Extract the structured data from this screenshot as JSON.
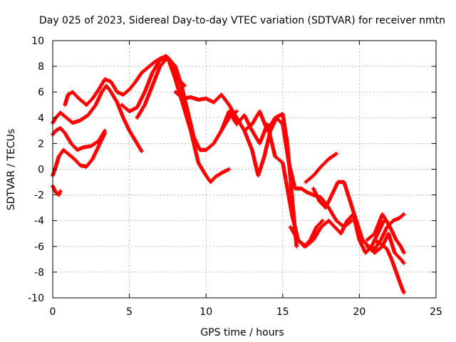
{
  "chart_data": {
    "type": "scatter",
    "title": "Day 025 of 2023, Sidereal Day-to-day VTEC variation (SDTVAR) for receiver nmtn",
    "xlabel": "GPS time / hours",
    "ylabel": "SDTVAR / TECUs",
    "xlim": [
      0,
      25
    ],
    "ylim": [
      -10,
      10
    ],
    "xticks": [
      "0",
      "5",
      "10",
      "15",
      "20",
      "25"
    ],
    "yticks": [
      "-10",
      "-8",
      "-6",
      "-4",
      "-2",
      "0",
      "2",
      "4",
      "6",
      "8",
      "10"
    ],
    "grid": true,
    "marker": "plus",
    "color": "#ff0000",
    "series": [
      {
        "name": "track-1",
        "x": [
          0.0,
          0.2,
          0.5,
          0.9,
          1.3,
          1.8,
          2.3,
          2.8,
          3.2,
          3.5,
          3.8,
          4.2,
          4.6,
          5.0,
          5.4,
          5.8
        ],
        "y": [
          3.6,
          4.0,
          4.4,
          4.0,
          3.6,
          3.8,
          4.2,
          5.0,
          6.0,
          6.5,
          6.0,
          5.2,
          4.0,
          3.0,
          2.2,
          1.4
        ]
      },
      {
        "name": "track-2",
        "x": [
          0.0,
          0.2,
          0.5,
          0.8,
          1.2,
          1.6,
          2.0,
          2.5,
          3.0,
          3.4
        ],
        "y": [
          2.7,
          3.0,
          3.2,
          2.8,
          2.0,
          1.5,
          1.7,
          1.8,
          2.2,
          3.0
        ]
      },
      {
        "name": "track-3",
        "x": [
          0.0,
          0.2,
          0.4,
          0.7,
          1.0,
          1.4,
          1.8,
          2.2,
          2.6,
          3.0,
          3.4
        ],
        "y": [
          -0.5,
          0.2,
          1.0,
          1.5,
          1.2,
          0.8,
          0.3,
          0.2,
          0.8,
          1.8,
          2.8
        ]
      },
      {
        "name": "track-4",
        "x": [
          0.0,
          0.2,
          0.4,
          0.5
        ],
        "y": [
          -1.3,
          -1.8,
          -2.0,
          -1.7
        ]
      },
      {
        "name": "track-5",
        "x": [
          0.8,
          1.0,
          1.3,
          1.7,
          2.2,
          2.6,
          3.0,
          3.4,
          3.8,
          4.2,
          4.6,
          5.0,
          5.4,
          5.8,
          6.2,
          6.6,
          7.0,
          7.4,
          7.8,
          8.2,
          8.6
        ],
        "y": [
          5.0,
          5.8,
          6.0,
          5.5,
          5.0,
          5.5,
          6.2,
          7.0,
          6.8,
          6.0,
          5.8,
          6.2,
          6.8,
          7.5,
          7.9,
          8.3,
          8.6,
          8.8,
          8.2,
          7.0,
          6.5
        ]
      },
      {
        "name": "track-6",
        "x": [
          5.5,
          6.0,
          6.5,
          7.0,
          7.5,
          8.0,
          8.4,
          8.8,
          9.2,
          9.6,
          10.0,
          10.5,
          11.0,
          11.5,
          12.0
        ],
        "y": [
          4.0,
          5.0,
          6.5,
          8.0,
          8.7,
          8.0,
          6.5,
          4.5,
          2.5,
          1.5,
          1.5,
          2.0,
          3.0,
          4.0,
          4.5
        ]
      },
      {
        "name": "track-7",
        "x": [
          4.5,
          5.0,
          5.5,
          6.0,
          6.5,
          7.0,
          7.5,
          8.0,
          8.5,
          9.0,
          9.5,
          10.0,
          10.3,
          10.6,
          11.0,
          11.5
        ],
        "y": [
          5.0,
          4.5,
          4.8,
          6.0,
          7.5,
          8.5,
          8.7,
          7.0,
          5.0,
          3.0,
          0.5,
          -0.5,
          -1.0,
          -0.6,
          -0.3,
          0.0
        ]
      },
      {
        "name": "track-8",
        "x": [
          8.0,
          8.5,
          9.0,
          9.5,
          10.0,
          10.5,
          11.0,
          11.5,
          12.0,
          12.5,
          13.0,
          13.5,
          14.0,
          14.5,
          15.0,
          15.3,
          15.6,
          15.9
        ],
        "y": [
          6.0,
          5.5,
          5.6,
          5.4,
          5.5,
          5.2,
          5.8,
          5.0,
          4.0,
          3.0,
          3.5,
          4.5,
          3.0,
          4.0,
          4.3,
          2.0,
          -2.0,
          -6.0
        ]
      },
      {
        "name": "track-9",
        "x": [
          11.0,
          11.5,
          12.0,
          12.5,
          13.0,
          13.5,
          14.0,
          14.5,
          15.0,
          15.3,
          15.6,
          16.0,
          16.4,
          16.8,
          17.2,
          17.6
        ],
        "y": [
          3.0,
          4.5,
          3.5,
          4.2,
          3.0,
          2.0,
          3.5,
          1.0,
          0.5,
          -1.5,
          -3.5,
          -5.5,
          -6.0,
          -5.5,
          -4.5,
          -4.0
        ]
      },
      {
        "name": "track-10",
        "x": [
          12.5,
          13.0,
          13.4,
          13.8,
          14.2,
          14.6,
          15.0,
          15.4,
          15.8,
          16.2,
          16.6,
          17.0,
          17.5,
          18.0,
          18.5,
          19.0,
          19.5
        ],
        "y": [
          3.0,
          1.5,
          -0.5,
          1.0,
          3.0,
          4.0,
          3.5,
          0.5,
          -1.5,
          -1.5,
          -1.8,
          -2.0,
          -2.2,
          -3.0,
          -4.0,
          -4.5,
          -4.0
        ]
      },
      {
        "name": "track-11",
        "x": [
          15.5,
          16.0,
          16.5,
          17.0,
          17.5,
          18.0,
          18.4,
          18.8,
          19.2,
          19.6,
          20.0,
          20.4,
          20.8,
          21.2,
          21.6
        ],
        "y": [
          -4.5,
          -5.5,
          -6.0,
          -5.5,
          -4.5,
          -4.0,
          -4.5,
          -5.0,
          -4.0,
          -3.5,
          -5.5,
          -6.5,
          -6.0,
          -5.0,
          -4.0
        ]
      },
      {
        "name": "track-12",
        "x": [
          17.0,
          17.4,
          17.8,
          18.2,
          18.6,
          19.0,
          19.4,
          19.8,
          20.2,
          20.6,
          21.0,
          21.4,
          21.8,
          22.2,
          22.6,
          22.9
        ],
        "y": [
          -1.5,
          -2.5,
          -3.0,
          -2.0,
          -1.0,
          -1.0,
          -2.5,
          -4.0,
          -5.5,
          -6.0,
          -6.2,
          -5.5,
          -4.5,
          -4.0,
          -3.8,
          -3.5
        ]
      },
      {
        "name": "track-13",
        "x": [
          16.5,
          17.0,
          17.5,
          18.0,
          18.5
        ],
        "y": [
          -1.0,
          -0.5,
          0.2,
          0.8,
          1.2
        ]
      },
      {
        "name": "track-14",
        "x": [
          20.5,
          21.0,
          21.5,
          22.0,
          22.4,
          22.7,
          22.9
        ],
        "y": [
          -5.5,
          -5.0,
          -3.5,
          -4.5,
          -5.5,
          -6.0,
          -6.5
        ]
      },
      {
        "name": "track-15",
        "x": [
          21.0,
          21.4,
          21.8,
          22.1,
          22.4,
          22.7,
          22.9
        ],
        "y": [
          -5.5,
          -5.8,
          -6.2,
          -7.0,
          -8.0,
          -9.0,
          -9.6
        ]
      },
      {
        "name": "track-16",
        "x": [
          20.5,
          21.0,
          21.5,
          21.9,
          22.3,
          22.7,
          22.9
        ],
        "y": [
          -6.0,
          -6.5,
          -6.0,
          -5.0,
          -6.5,
          -7.0,
          -7.3
        ]
      }
    ]
  }
}
